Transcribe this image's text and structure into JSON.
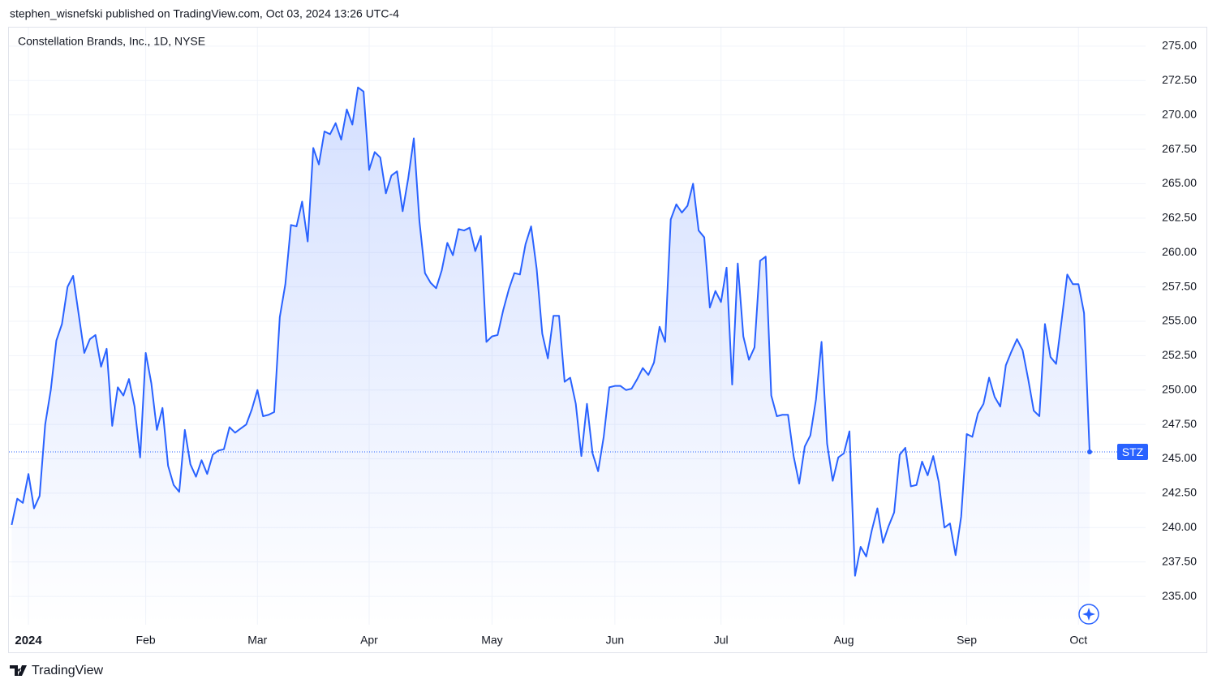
{
  "header": "stephen_wisnefski published on TradingView.com, Oct 03, 2024 13:26 UTC-4",
  "footer": "TradingView",
  "chart_data": {
    "type": "area",
    "title": "Constellation Brands, Inc., 1D, NYSE",
    "categories": [
      null,
      null,
      null,
      "2024",
      null,
      null,
      null,
      null,
      null,
      null,
      null,
      null,
      null,
      null,
      null,
      null,
      null,
      null,
      null,
      null,
      null,
      null,
      null,
      null,
      "Feb",
      null,
      null,
      null,
      null,
      null,
      null,
      null,
      null,
      null,
      null,
      null,
      null,
      null,
      null,
      null,
      null,
      null,
      null,
      null,
      "Mar",
      null,
      null,
      null,
      null,
      null,
      null,
      null,
      null,
      null,
      null,
      null,
      null,
      null,
      null,
      null,
      null,
      null,
      null,
      null,
      "Apr",
      null,
      null,
      null,
      null,
      null,
      null,
      null,
      null,
      null,
      null,
      null,
      null,
      null,
      null,
      null,
      null,
      null,
      null,
      null,
      null,
      null,
      "May",
      null,
      null,
      null,
      null,
      null,
      null,
      null,
      null,
      null,
      null,
      null,
      null,
      null,
      null,
      null,
      null,
      null,
      null,
      null,
      null,
      null,
      "Jun",
      null,
      null,
      null,
      null,
      null,
      null,
      null,
      null,
      null,
      null,
      null,
      null,
      null,
      null,
      null,
      null,
      null,
      null,
      "Jul",
      null,
      null,
      null,
      null,
      null,
      null,
      null,
      null,
      null,
      null,
      null,
      null,
      null,
      null,
      null,
      null,
      null,
      null,
      null,
      null,
      null,
      "Aug",
      null,
      null,
      null,
      null,
      null,
      null,
      null,
      null,
      null,
      null,
      null,
      null,
      null,
      null,
      null,
      null,
      null,
      null,
      null,
      null,
      null,
      "Sep",
      null,
      null,
      null,
      null,
      null,
      null,
      null,
      null,
      null,
      null,
      null,
      null,
      null,
      null,
      null,
      null,
      null,
      null,
      null,
      "Oct",
      null,
      null
    ],
    "series": [
      {
        "name": "STZ",
        "color": "#2962ff",
        "values": [
          240.2,
          242.1,
          241.8,
          243.9,
          241.4,
          242.3,
          247.5,
          250.0,
          253.6,
          254.8,
          257.5,
          258.3,
          255.5,
          252.7,
          253.7,
          254.0,
          251.7,
          253.0,
          247.4,
          250.2,
          249.6,
          250.8,
          248.8,
          245.1,
          252.7,
          250.5,
          247.1,
          248.7,
          244.5,
          243.1,
          242.6,
          247.1,
          244.6,
          243.7,
          244.9,
          243.9,
          245.3,
          245.6,
          245.7,
          247.3,
          246.9,
          247.2,
          247.5,
          248.6,
          250.0,
          248.1,
          248.2,
          248.4,
          255.3,
          257.7,
          262.0,
          261.9,
          263.7,
          260.8,
          267.6,
          266.4,
          268.8,
          268.6,
          269.4,
          268.2,
          270.4,
          269.3,
          272.0,
          271.7,
          266.0,
          267.3,
          266.9,
          264.3,
          265.6,
          265.9,
          263.0,
          265.4,
          268.3,
          262.3,
          258.5,
          257.8,
          257.4,
          258.7,
          260.7,
          259.8,
          261.7,
          261.6,
          261.8,
          260.1,
          261.2,
          253.5,
          253.9,
          254.0,
          255.8,
          257.3,
          258.5,
          258.4,
          260.6,
          261.9,
          258.8,
          254.1,
          252.3,
          255.4,
          255.4,
          250.6,
          250.9,
          249.0,
          245.2,
          249.0,
          245.4,
          244.1,
          246.6,
          250.2,
          250.3,
          250.3,
          250.0,
          250.1,
          250.8,
          251.6,
          251.1,
          252.0,
          254.6,
          253.5,
          262.4,
          263.5,
          262.9,
          263.4,
          265.0,
          261.6,
          261.1,
          256.0,
          257.2,
          256.4,
          258.9,
          250.4,
          259.2,
          253.9,
          252.2,
          253.1,
          259.4,
          259.7,
          249.6,
          248.1,
          248.2,
          248.2,
          245.2,
          243.2,
          245.9,
          246.7,
          249.3,
          253.5,
          246.1,
          243.4,
          245.1,
          245.4,
          247.0,
          236.5,
          238.6,
          237.9,
          239.8,
          241.4,
          238.9,
          240.1,
          241.1,
          245.3,
          245.8,
          243.0,
          243.1,
          244.8,
          243.8,
          245.2,
          243.3,
          240.0,
          240.3,
          238.0,
          240.8,
          246.8,
          246.6,
          248.3,
          249.0,
          250.9,
          249.5,
          248.8,
          251.8,
          252.8,
          253.7,
          252.9,
          250.8,
          248.5,
          248.1,
          254.8,
          252.4,
          251.9,
          255.1,
          258.4,
          257.7,
          257.7,
          255.6,
          245.5
        ]
      }
    ],
    "ylim": [
      232.94,
      276.35
    ],
    "yticks": [
      {
        "value": 235,
        "label": "235.00"
      },
      {
        "value": 237.5,
        "label": "237.50"
      },
      {
        "value": 240,
        "label": "240.00"
      },
      {
        "value": 242.5,
        "label": "242.50"
      },
      {
        "value": 245,
        "label": "245.00"
      },
      {
        "value": 247.5,
        "label": "247.50"
      },
      {
        "value": 250,
        "label": "250.00"
      },
      {
        "value": 252.5,
        "label": "252.50"
      },
      {
        "value": 255,
        "label": "255.00"
      },
      {
        "value": 257.5,
        "label": "257.50"
      },
      {
        "value": 260,
        "label": "260.00"
      },
      {
        "value": 262.5,
        "label": "262.50"
      },
      {
        "value": 265,
        "label": "265.00"
      },
      {
        "value": 267.5,
        "label": "267.50"
      },
      {
        "value": 270,
        "label": "270.00"
      },
      {
        "value": 272.5,
        "label": "272.50"
      },
      {
        "value": 275,
        "label": "275.00"
      }
    ],
    "grid": true
  }
}
